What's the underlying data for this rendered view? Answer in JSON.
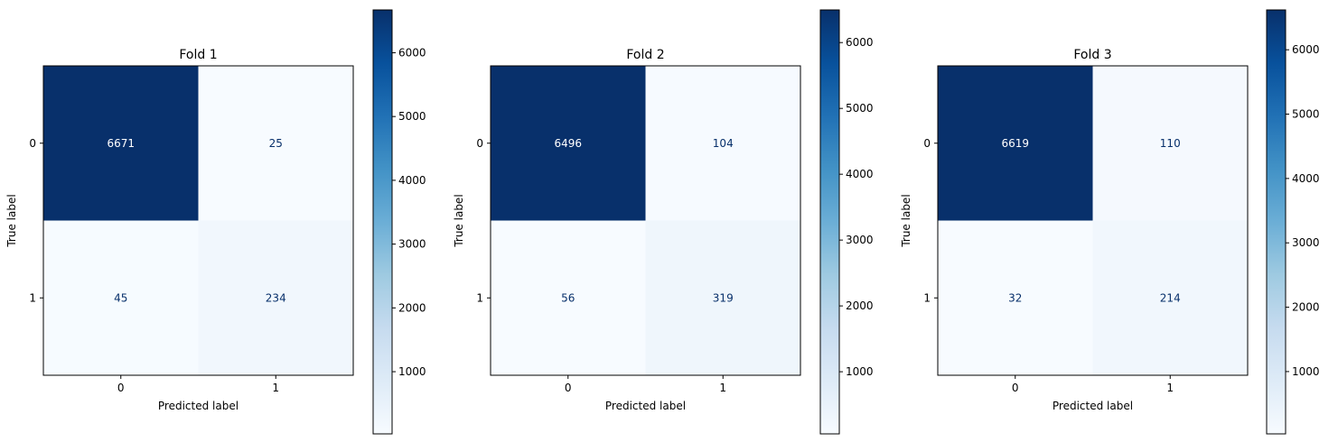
{
  "chart_data": [
    {
      "type": "heatmap",
      "title": "Fold 1",
      "xlabel": "Predicted label",
      "ylabel": "True label",
      "x_categories": [
        "0",
        "1"
      ],
      "y_categories": [
        "0",
        "1"
      ],
      "values": [
        [
          6671,
          25
        ],
        [
          45,
          234
        ]
      ],
      "colormap": "Blues",
      "colorbar_ticks": [
        1000,
        2000,
        3000,
        4000,
        5000,
        6000
      ],
      "color_range": [
        25,
        6671
      ]
    },
    {
      "type": "heatmap",
      "title": "Fold 2",
      "xlabel": "Predicted label",
      "ylabel": "True label",
      "x_categories": [
        "0",
        "1"
      ],
      "y_categories": [
        "0",
        "1"
      ],
      "values": [
        [
          6496,
          104
        ],
        [
          56,
          319
        ]
      ],
      "colormap": "Blues",
      "colorbar_ticks": [
        1000,
        2000,
        3000,
        4000,
        5000,
        6000
      ],
      "color_range": [
        56,
        6496
      ]
    },
    {
      "type": "heatmap",
      "title": "Fold 3",
      "xlabel": "Predicted label",
      "ylabel": "True label",
      "x_categories": [
        "0",
        "1"
      ],
      "y_categories": [
        "0",
        "1"
      ],
      "values": [
        [
          6619,
          110
        ],
        [
          32,
          214
        ]
      ],
      "colormap": "Blues",
      "colorbar_ticks": [
        1000,
        2000,
        3000,
        4000,
        5000,
        6000
      ],
      "color_range": [
        32,
        6619
      ]
    }
  ],
  "colors": {
    "text_dark": "#08306b",
    "text_light": "#ffffff",
    "border": "#000000"
  }
}
